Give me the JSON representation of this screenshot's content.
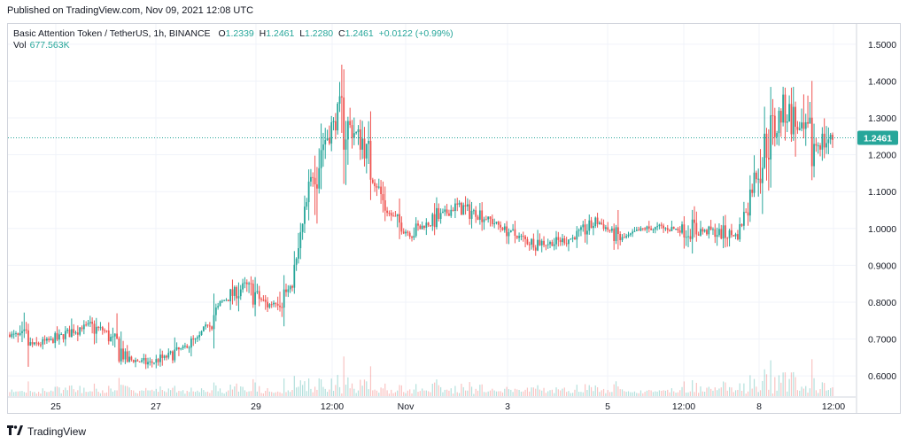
{
  "header": {
    "published": "Published on TradingView.com, Nov 09, 2021 12:08 UTC"
  },
  "legend": {
    "symbol": "Basic Attention Token / TetherUS, 1h, BINANCE",
    "o_key": "O",
    "o": "1.2339",
    "h_key": "H",
    "h": "1.2461",
    "l_key": "L",
    "l": "1.2280",
    "c_key": "C",
    "c": "1.2461",
    "change": "+0.0122 (+0.99%)",
    "vol_label": "Vol",
    "vol": "677.563K"
  },
  "footer": {
    "logo_text": "TradingView"
  },
  "colors": {
    "up": "#26a69a",
    "down": "#ef5350",
    "grid": "#f0f3fa",
    "price_tag": "#26a69a"
  },
  "chart_data": {
    "type": "candlestick",
    "interval": "1h",
    "y_ticks": [
      "1.5000",
      "1.4000",
      "1.3000",
      "1.2000",
      "1.1000",
      "1.0000",
      "0.9000",
      "0.8000",
      "0.7000",
      "0.6000"
    ],
    "ylim": [
      0.545,
      1.555
    ],
    "x_ticks": [
      "25",
      "27",
      "29",
      "12:00",
      "Nov",
      "3",
      "5",
      "12:00",
      "8",
      "12:00"
    ],
    "last_price": "1.2461",
    "grid": true,
    "approx_close_path": [
      {
        "t": "Oct 24",
        "price": 0.712
      },
      {
        "t": "Oct 25",
        "price": 0.683
      },
      {
        "t": "Oct 26",
        "price": 0.7
      },
      {
        "t": "Oct 26 18:00",
        "price": 0.732
      },
      {
        "t": "Oct 27",
        "price": 0.725
      },
      {
        "t": "Oct 27 12:00",
        "price": 0.645
      },
      {
        "t": "Oct 28",
        "price": 0.635
      },
      {
        "t": "Oct 28 12:00",
        "price": 0.66
      },
      {
        "t": "Oct 29",
        "price": 0.7
      },
      {
        "t": "Oct 29 12:00",
        "price": 0.8
      },
      {
        "t": "Oct 30",
        "price": 0.845
      },
      {
        "t": "Oct 30 06:00",
        "price": 0.79
      },
      {
        "t": "Oct 30 12:00",
        "price": 0.84
      },
      {
        "t": "Oct 30 18:00",
        "price": 1.2
      },
      {
        "t": "Oct 31",
        "price": 1.3
      },
      {
        "t": "Oct 31 06:00",
        "price": 1.24
      },
      {
        "t": "Oct 31 12:00",
        "price": 1.05
      },
      {
        "t": "Nov 1",
        "price": 0.985
      },
      {
        "t": "Nov 1 18:00",
        "price": 1.02
      },
      {
        "t": "Nov 2",
        "price": 1.06
      },
      {
        "t": "Nov 2 12:00",
        "price": 1.04
      },
      {
        "t": "Nov 3",
        "price": 1.0
      },
      {
        "t": "Nov 3 18:00",
        "price": 0.965
      },
      {
        "t": "Nov 4",
        "price": 0.96
      },
      {
        "t": "Nov 4 12:00",
        "price": 0.975
      },
      {
        "t": "Nov 5",
        "price": 1.02
      },
      {
        "t": "Nov 5 12:00",
        "price": 0.97
      },
      {
        "t": "Nov 6",
        "price": 1.0
      },
      {
        "t": "Nov 6 12:00",
        "price": 1.0
      },
      {
        "t": "Nov 7",
        "price": 0.995
      },
      {
        "t": "Nov 7 18:00",
        "price": 0.99
      },
      {
        "t": "Nov 8",
        "price": 0.98
      },
      {
        "t": "Nov 8 06:00",
        "price": 1.2
      },
      {
        "t": "Nov 8 12:00",
        "price": 1.33
      },
      {
        "t": "Nov 8 18:00",
        "price": 1.22
      },
      {
        "t": "Nov 9",
        "price": 1.2461
      }
    ]
  }
}
